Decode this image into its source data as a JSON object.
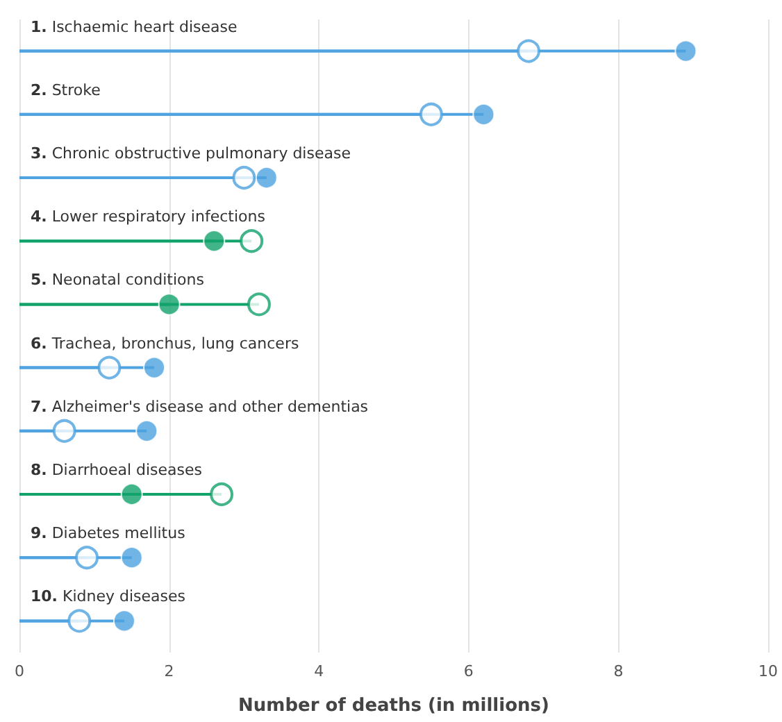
{
  "chart_data": {
    "type": "lollipop",
    "orientation": "horizontal",
    "xlabel": "Number of deaths (in millions)",
    "categories": [
      "1. Ischaemic heart disease",
      "2. Stroke",
      "3. Chronic obstructive pulmonary disease",
      "4. Lower respiratory infections",
      "5. Neonatal conditions",
      "6. Trachea, bronchus, lung cancers",
      "7. Alzheimer's disease and other dementias",
      "8. Diarrhoeal diseases",
      "9. Diabetes mellitus",
      "10. Kidney diseases"
    ],
    "series": [
      {
        "marker": "circle",
        "colors": [
          "#4ea3e0",
          "#4ea3e0",
          "#4ea3e0",
          "#12a36b",
          "#12a36b",
          "#4ea3e0",
          "#4ea3e0",
          "#12a36b",
          "#4ea3e0",
          "#4ea3e0"
        ],
        "values": [
          6.8,
          5.5,
          3.0,
          3.1,
          3.2,
          1.2,
          0.6,
          2.7,
          0.9,
          0.8
        ]
      },
      {
        "marker": "circle",
        "colors": [
          "#4ea3e0",
          "#4ea3e0",
          "#4ea3e0",
          "#12a36b",
          "#12a36b",
          "#4ea3e0",
          "#4ea3e0",
          "#12a36b",
          "#4ea3e0",
          "#4ea3e0"
        ],
        "values": [
          8.9,
          6.2,
          3.3,
          2.6,
          2.0,
          1.8,
          1.7,
          1.5,
          1.5,
          1.4
        ]
      }
    ],
    "xlim": [
      0,
      10
    ],
    "xticks": [
      0,
      2,
      4,
      6,
      8,
      10
    ],
    "grid": "x"
  }
}
